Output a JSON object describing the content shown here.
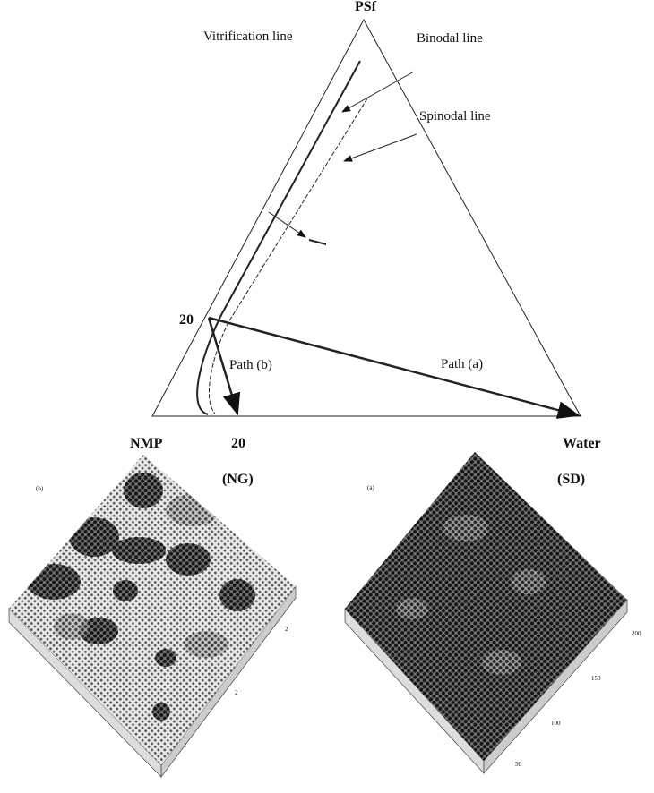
{
  "diagram": {
    "apex_label": "PSf",
    "left_label": "NMP",
    "right_label": "Water",
    "left_axis_tick": "20",
    "bottom_axis_tick": "20",
    "annotations": [
      "Vitrification line",
      "Binodal line",
      "Spinodal line"
    ],
    "paths": [
      "Path (b)",
      "Path (a)"
    ],
    "mechanisms": [
      "(NG)",
      "(SD)"
    ]
  },
  "images": [
    {
      "label": "(b)",
      "ticks": [
        "2",
        "2",
        "1"
      ]
    },
    {
      "label": "(a)",
      "ticks": [
        "200",
        "150",
        "100",
        "50"
      ]
    }
  ]
}
